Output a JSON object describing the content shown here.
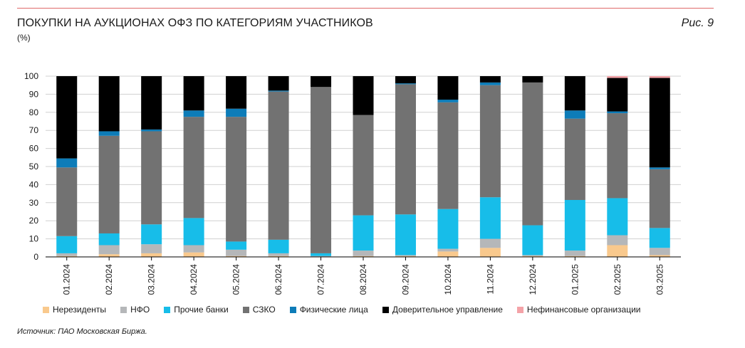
{
  "title": "ПОКУПКИ НА АУКЦИОНАХ ОФЗ ПО КАТЕГОРИЯМ УЧАСТНИКОВ",
  "subtitle": "(%)",
  "figure_label": "Рис. 9",
  "source": "Источник: ПАО Московская Биржа.",
  "chart_data": {
    "type": "bar",
    "stacked": true,
    "title": "ПОКУПКИ НА АУКЦИОНАХ ОФЗ ПО КАТЕГОРИЯМ УЧАСТНИКОВ",
    "ylabel": "(%)",
    "ylim": [
      0,
      100
    ],
    "yticks": [
      "0",
      "10",
      "20",
      "30",
      "40",
      "50",
      "60",
      "70",
      "80",
      "90",
      "100"
    ],
    "grid": true,
    "legend_position": "bottom",
    "categories": [
      "01.2024",
      "02.2024",
      "03.2024",
      "04.2024",
      "05.2024",
      "06.2024",
      "07.2024",
      "08.2024",
      "09.2024",
      "10.2024",
      "11.2024",
      "12.2024",
      "01.2025",
      "02.2025",
      "03.2025"
    ],
    "series": [
      {
        "name": "Нерезиденты",
        "color": "#f9c98d",
        "values": [
          0.5,
          1.5,
          2,
          2.5,
          0.5,
          0.5,
          0,
          0.5,
          0.5,
          3,
          5,
          0.5,
          0.5,
          6.5,
          1
        ]
      },
      {
        "name": "НФО",
        "color": "#b5b7b9",
        "values": [
          1.5,
          5,
          5,
          4,
          3.5,
          1.5,
          0.5,
          3,
          0.5,
          1.5,
          5,
          0.5,
          3,
          5.5,
          4
        ]
      },
      {
        "name": "Прочие банки",
        "color": "#17bde9",
        "values": [
          9.5,
          6.5,
          11,
          15,
          4.5,
          7.5,
          1.5,
          19.5,
          22.5,
          22,
          23,
          16.5,
          28,
          20.5,
          11
        ]
      },
      {
        "name": "СЗКО",
        "color": "#727272",
        "values": [
          38,
          54,
          51.5,
          56,
          69,
          82,
          92,
          55.5,
          72,
          59,
          62,
          79,
          45,
          47,
          32.5
        ]
      },
      {
        "name": "Физические лица",
        "color": "#0d7cb8",
        "values": [
          5,
          2.5,
          1,
          3.5,
          4.5,
          0.5,
          0,
          0,
          0.5,
          1.5,
          1.5,
          0,
          4.5,
          1,
          1
        ]
      },
      {
        "name": "Доверительное управление",
        "color": "#000000",
        "values": [
          45.5,
          30.5,
          29.5,
          19,
          18,
          8,
          6,
          21.5,
          4,
          13,
          3.5,
          3.5,
          19,
          18.5,
          49.5
        ]
      },
      {
        "name": "Нефинансовые организации",
        "color": "#f4a3a8",
        "values": [
          0,
          0,
          0,
          0,
          0,
          0,
          0,
          0,
          0,
          0,
          0,
          0,
          0,
          1,
          1
        ]
      }
    ]
  }
}
